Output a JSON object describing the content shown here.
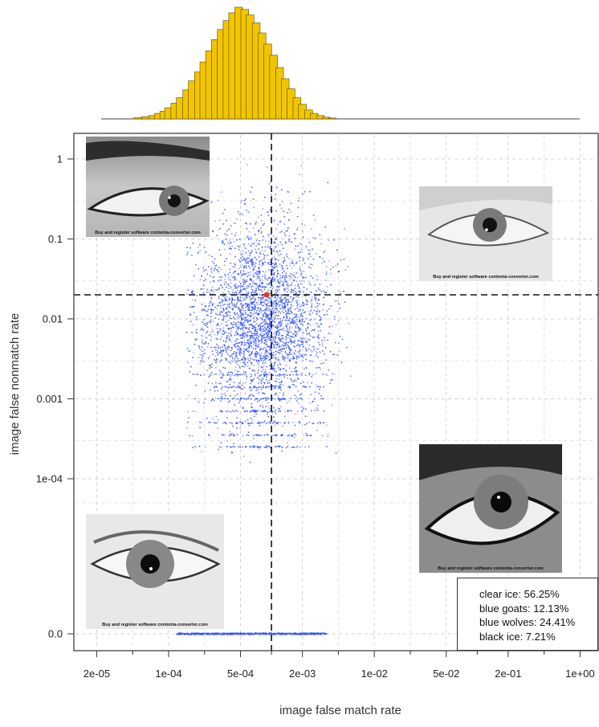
{
  "chart_data": [
    {
      "type": "scatter",
      "title": "",
      "xlabel": "image false match rate",
      "ylabel": "image false nonmatch rate",
      "x_scale": "log",
      "y_scale": "log",
      "xlim": [
        1.2e-05,
        1.5
      ],
      "ylim": [
        "0.0",
        1.7
      ],
      "x_ticks": [
        {
          "value": 2e-05,
          "label": "2e-05"
        },
        {
          "value": 0.0001,
          "label": "1e-04"
        },
        {
          "value": 0.0005,
          "label": "5e-04"
        },
        {
          "value": 0.002,
          "label": "2e-03"
        },
        {
          "value": 0.01,
          "label": "1e-02"
        },
        {
          "value": 0.05,
          "label": "5e-02"
        },
        {
          "value": 0.2,
          "label": "2e-01"
        },
        {
          "value": 1.0,
          "label": "1e+00"
        }
      ],
      "y_ticks": [
        {
          "value": 1,
          "label": "1"
        },
        {
          "value": 0.1,
          "label": "0.1"
        },
        {
          "value": 0.01,
          "label": "0.01"
        },
        {
          "value": 0.001,
          "label": "0.001"
        },
        {
          "value": 0.0001,
          "label": "1e-04"
        },
        {
          "value": 0,
          "label": "0.0"
        }
      ],
      "grid": true,
      "threshold_lines": {
        "x": 0.001,
        "y": 0.02
      },
      "highlight_point": {
        "x": 0.0009,
        "y": 0.02,
        "color": "#e23a1a"
      },
      "point_color": "#2b4cff",
      "cloud": {
        "x_range": [
          0.00015,
          0.006
        ],
        "x_center": 0.0008,
        "y_range": [
          0.00015,
          1
        ],
        "y_center": 0.008,
        "zero_row_x_range": [
          0.00012,
          0.0035
        ]
      }
    },
    {
      "type": "bar",
      "title": "",
      "description": "marginal histogram of image false match rate",
      "x_scale": "log",
      "bar_color": "#f2c500",
      "bins": [
        {
          "x": 5e-05,
          "height": 0.01
        },
        {
          "x": 6e-05,
          "height": 0.02
        },
        {
          "x": 7e-05,
          "height": 0.03
        },
        {
          "x": 8e-05,
          "height": 0.05
        },
        {
          "x": 9e-05,
          "height": 0.07
        },
        {
          "x": 0.0001,
          "height": 0.1
        },
        {
          "x": 0.000115,
          "height": 0.14
        },
        {
          "x": 0.00013,
          "height": 0.19
        },
        {
          "x": 0.00015,
          "height": 0.26
        },
        {
          "x": 0.00017,
          "height": 0.34
        },
        {
          "x": 0.000195,
          "height": 0.42
        },
        {
          "x": 0.00022,
          "height": 0.51
        },
        {
          "x": 0.00025,
          "height": 0.61
        },
        {
          "x": 0.000285,
          "height": 0.71
        },
        {
          "x": 0.000325,
          "height": 0.8
        },
        {
          "x": 0.00037,
          "height": 0.88
        },
        {
          "x": 0.00042,
          "height": 0.95
        },
        {
          "x": 0.00048,
          "height": 1.0
        },
        {
          "x": 0.00055,
          "height": 0.98
        },
        {
          "x": 0.00062,
          "height": 0.93
        },
        {
          "x": 0.00071,
          "height": 0.86
        },
        {
          "x": 0.00081,
          "height": 0.77
        },
        {
          "x": 0.00092,
          "height": 0.67
        },
        {
          "x": 0.00105,
          "height": 0.57
        },
        {
          "x": 0.0012,
          "height": 0.46
        },
        {
          "x": 0.00136,
          "height": 0.36
        },
        {
          "x": 0.00155,
          "height": 0.27
        },
        {
          "x": 0.00177,
          "height": 0.19
        },
        {
          "x": 0.002,
          "height": 0.13
        },
        {
          "x": 0.0023,
          "height": 0.08
        },
        {
          "x": 0.0026,
          "height": 0.05
        },
        {
          "x": 0.003,
          "height": 0.03
        },
        {
          "x": 0.0034,
          "height": 0.015
        },
        {
          "x": 0.0039,
          "height": 0.008
        }
      ]
    }
  ],
  "legend": {
    "items": [
      {
        "label": "clear ice: 56.25%"
      },
      {
        "label": "blue goats: 12.13%"
      },
      {
        "label": "blue wolves: 24.41%"
      },
      {
        "label": "black ice: 7.21%"
      }
    ]
  },
  "eye_images": [
    {
      "name": "eye-top-left",
      "icon": "eye-closeup-image",
      "watermark": "Buy and register software contenta-converter.com"
    },
    {
      "name": "eye-top-right",
      "icon": "eye-closeup-image",
      "watermark": "Buy and register software contenta-converter.com"
    },
    {
      "name": "eye-bottom-left",
      "icon": "eye-closeup-image",
      "watermark": "Buy and register software contenta-converter.com"
    },
    {
      "name": "eye-bottom-right",
      "icon": "eye-closeup-image",
      "watermark": "Buy and register software contenta-converter.com"
    }
  ]
}
